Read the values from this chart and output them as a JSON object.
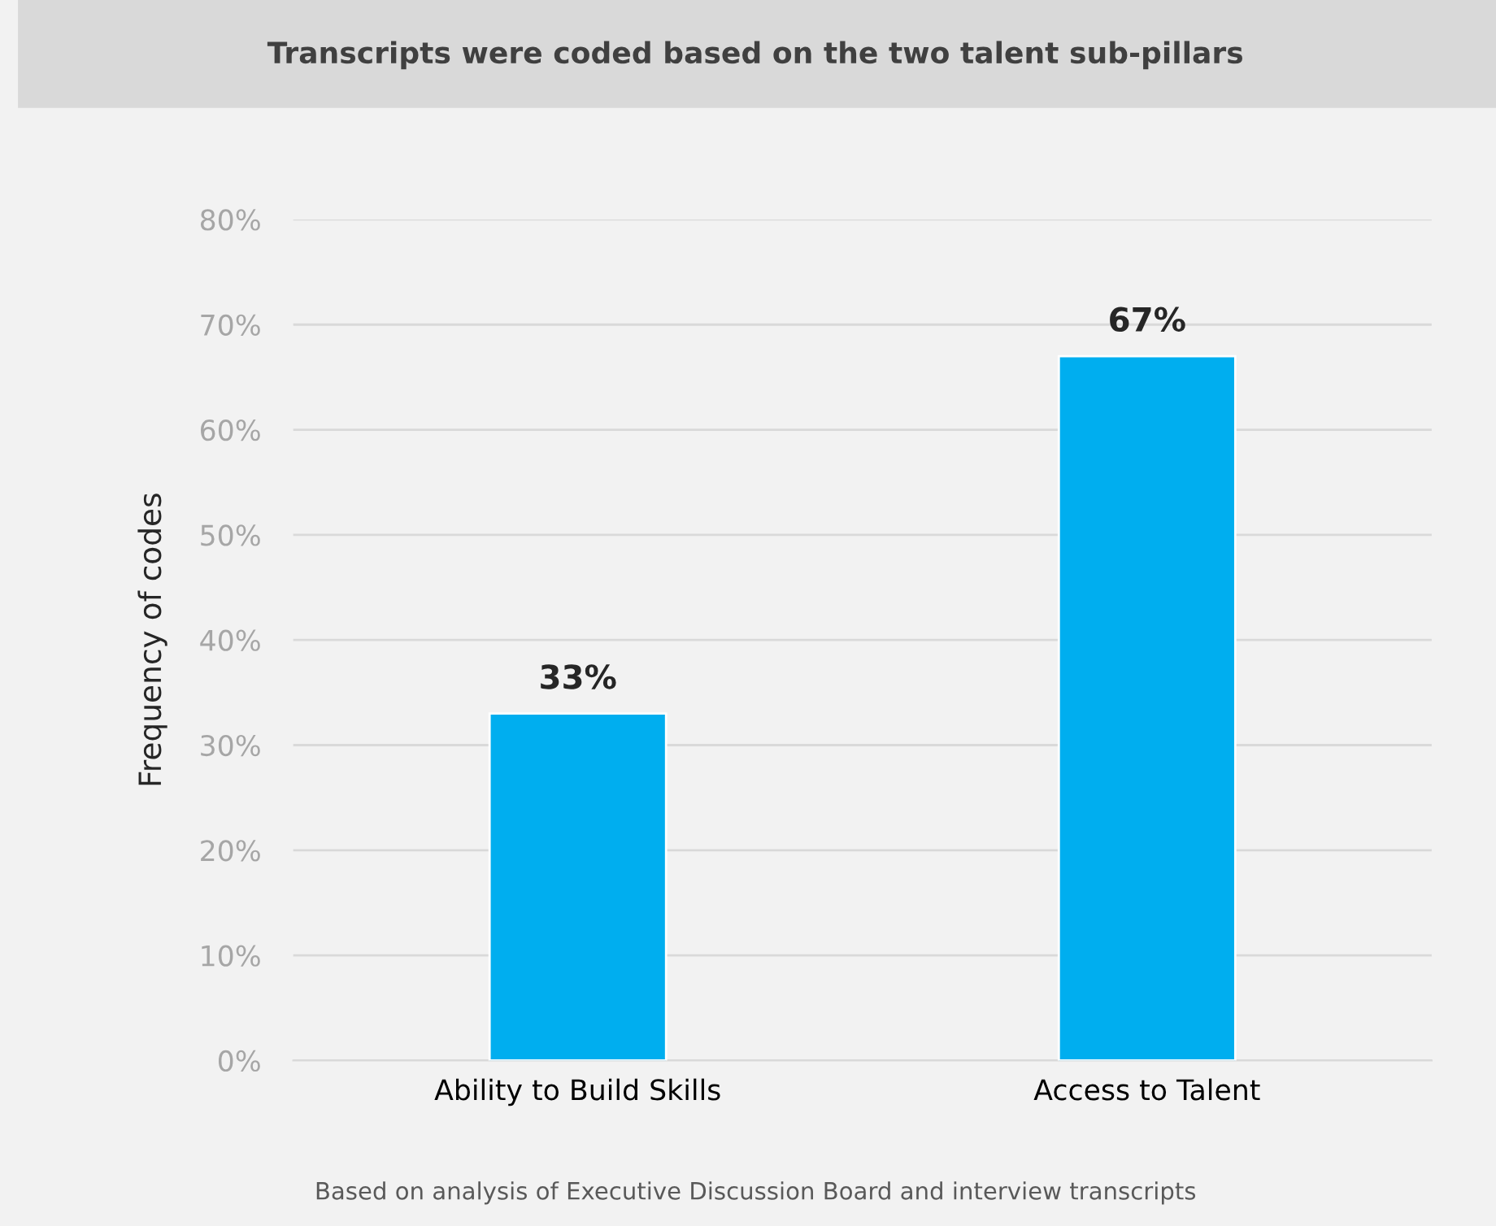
{
  "chart_data": {
    "type": "bar",
    "title": "Transcripts were coded based on the two talent sub-pillars",
    "ylabel": "Frequency of codes",
    "categories": [
      "Ability to Build Skills",
      "Access to Talent"
    ],
    "values": [
      33,
      67
    ],
    "value_labels": [
      "33%",
      "67%"
    ],
    "color": "#00aeef",
    "ylim": [
      0,
      80
    ],
    "yticks": [
      {
        "value": 0,
        "label": "0%"
      },
      {
        "value": 10,
        "label": "10%"
      },
      {
        "value": 20,
        "label": "20%"
      },
      {
        "value": 30,
        "label": "30%"
      },
      {
        "value": 40,
        "label": "40%"
      },
      {
        "value": 50,
        "label": "50%"
      },
      {
        "value": 60,
        "label": "60%"
      },
      {
        "value": 70,
        "label": "70%"
      },
      {
        "value": 80,
        "label": "80%"
      }
    ],
    "grid": "y",
    "annotations": [
      "Based on analysis of Executive Discussion Board and interview transcripts"
    ]
  }
}
